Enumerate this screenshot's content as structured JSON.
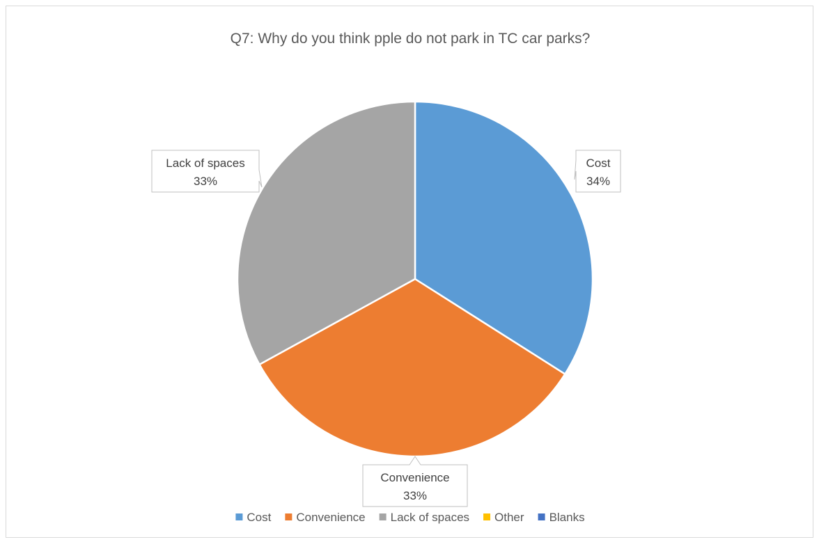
{
  "chart_data": {
    "type": "pie",
    "title": "Q7: Why do you think pple do not park in TC car parks?",
    "slices": [
      {
        "label": "Cost",
        "percent_label": "34%",
        "value": 34,
        "color": "#5B9BD5"
      },
      {
        "label": "Convenience",
        "percent_label": "33%",
        "value": 33,
        "color": "#ED7D31"
      },
      {
        "label": "Lack of spaces",
        "percent_label": "33%",
        "value": 33,
        "color": "#A5A5A5"
      },
      {
        "label": "Other",
        "percent_label": "",
        "value": 0,
        "color": "#FFC000"
      },
      {
        "label": "Blanks",
        "percent_label": "",
        "value": 0,
        "color": "#4472C4"
      }
    ],
    "legend": {
      "position": "bottom",
      "entries": [
        "Cost",
        "Convenience",
        "Lack of spaces",
        "Other",
        "Blanks"
      ]
    },
    "data_labels": "callout"
  }
}
